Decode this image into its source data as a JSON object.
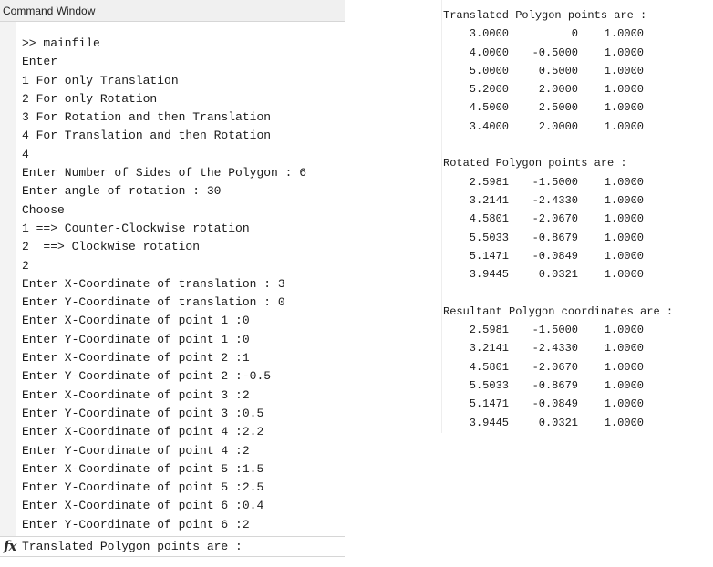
{
  "command_window": {
    "title": "Command Window",
    "lines": [
      ">> mainfile",
      "Enter",
      "1 For only Translation",
      "2 For only Rotation",
      "3 For Rotation and then Translation",
      "4 For Translation and then Rotation",
      "4",
      "Enter Number of Sides of the Polygon : 6",
      "Enter angle of rotation : 30",
      "Choose",
      "1 ==> Counter-Clockwise rotation",
      "2  ==> Clockwise rotation",
      "2",
      "Enter X-Coordinate of translation : 3",
      "Enter Y-Coordinate of translation : 0",
      "Enter X-Coordinate of point 1 :0",
      "Enter Y-Coordinate of point 1 :0",
      "Enter X-Coordinate of point 2 :1",
      "Enter Y-Coordinate of point 2 :-0.5",
      "Enter X-Coordinate of point 3 :2",
      "Enter Y-Coordinate of point 3 :0.5",
      "Enter X-Coordinate of point 4 :2.2",
      "Enter Y-Coordinate of point 4 :2",
      "Enter X-Coordinate of point 5 :1.5",
      "Enter Y-Coordinate of point 5 :2.5",
      "Enter X-Coordinate of point 6 :0.4",
      "Enter Y-Coordinate of point 6 :2"
    ],
    "prompt_icon": "fx-icon",
    "current_line": "Translated Polygon points are :"
  },
  "output": {
    "sections": [
      {
        "heading": "Translated Polygon points are :",
        "rows": [
          [
            "3.0000",
            "0",
            "1.0000"
          ],
          [
            "4.0000",
            "-0.5000",
            "1.0000"
          ],
          [
            "5.0000",
            "0.5000",
            "1.0000"
          ],
          [
            "5.2000",
            "2.0000",
            "1.0000"
          ],
          [
            "4.5000",
            "2.5000",
            "1.0000"
          ],
          [
            "3.4000",
            "2.0000",
            "1.0000"
          ]
        ]
      },
      {
        "heading": "Rotated Polygon points are :",
        "rows": [
          [
            "2.5981",
            "-1.5000",
            "1.0000"
          ],
          [
            "3.2141",
            "-2.4330",
            "1.0000"
          ],
          [
            "4.5801",
            "-2.0670",
            "1.0000"
          ],
          [
            "5.5033",
            "-0.8679",
            "1.0000"
          ],
          [
            "5.1471",
            "-0.0849",
            "1.0000"
          ],
          [
            "3.9445",
            "0.0321",
            "1.0000"
          ]
        ]
      },
      {
        "heading": "Resultant Polygon coordinates are :",
        "rows": [
          [
            "2.5981",
            "-1.5000",
            "1.0000"
          ],
          [
            "3.2141",
            "-2.4330",
            "1.0000"
          ],
          [
            "4.5801",
            "-2.0670",
            "1.0000"
          ],
          [
            "5.5033",
            "-0.8679",
            "1.0000"
          ],
          [
            "5.1471",
            "-0.0849",
            "1.0000"
          ],
          [
            "3.9445",
            "0.0321",
            "1.0000"
          ]
        ]
      }
    ]
  }
}
